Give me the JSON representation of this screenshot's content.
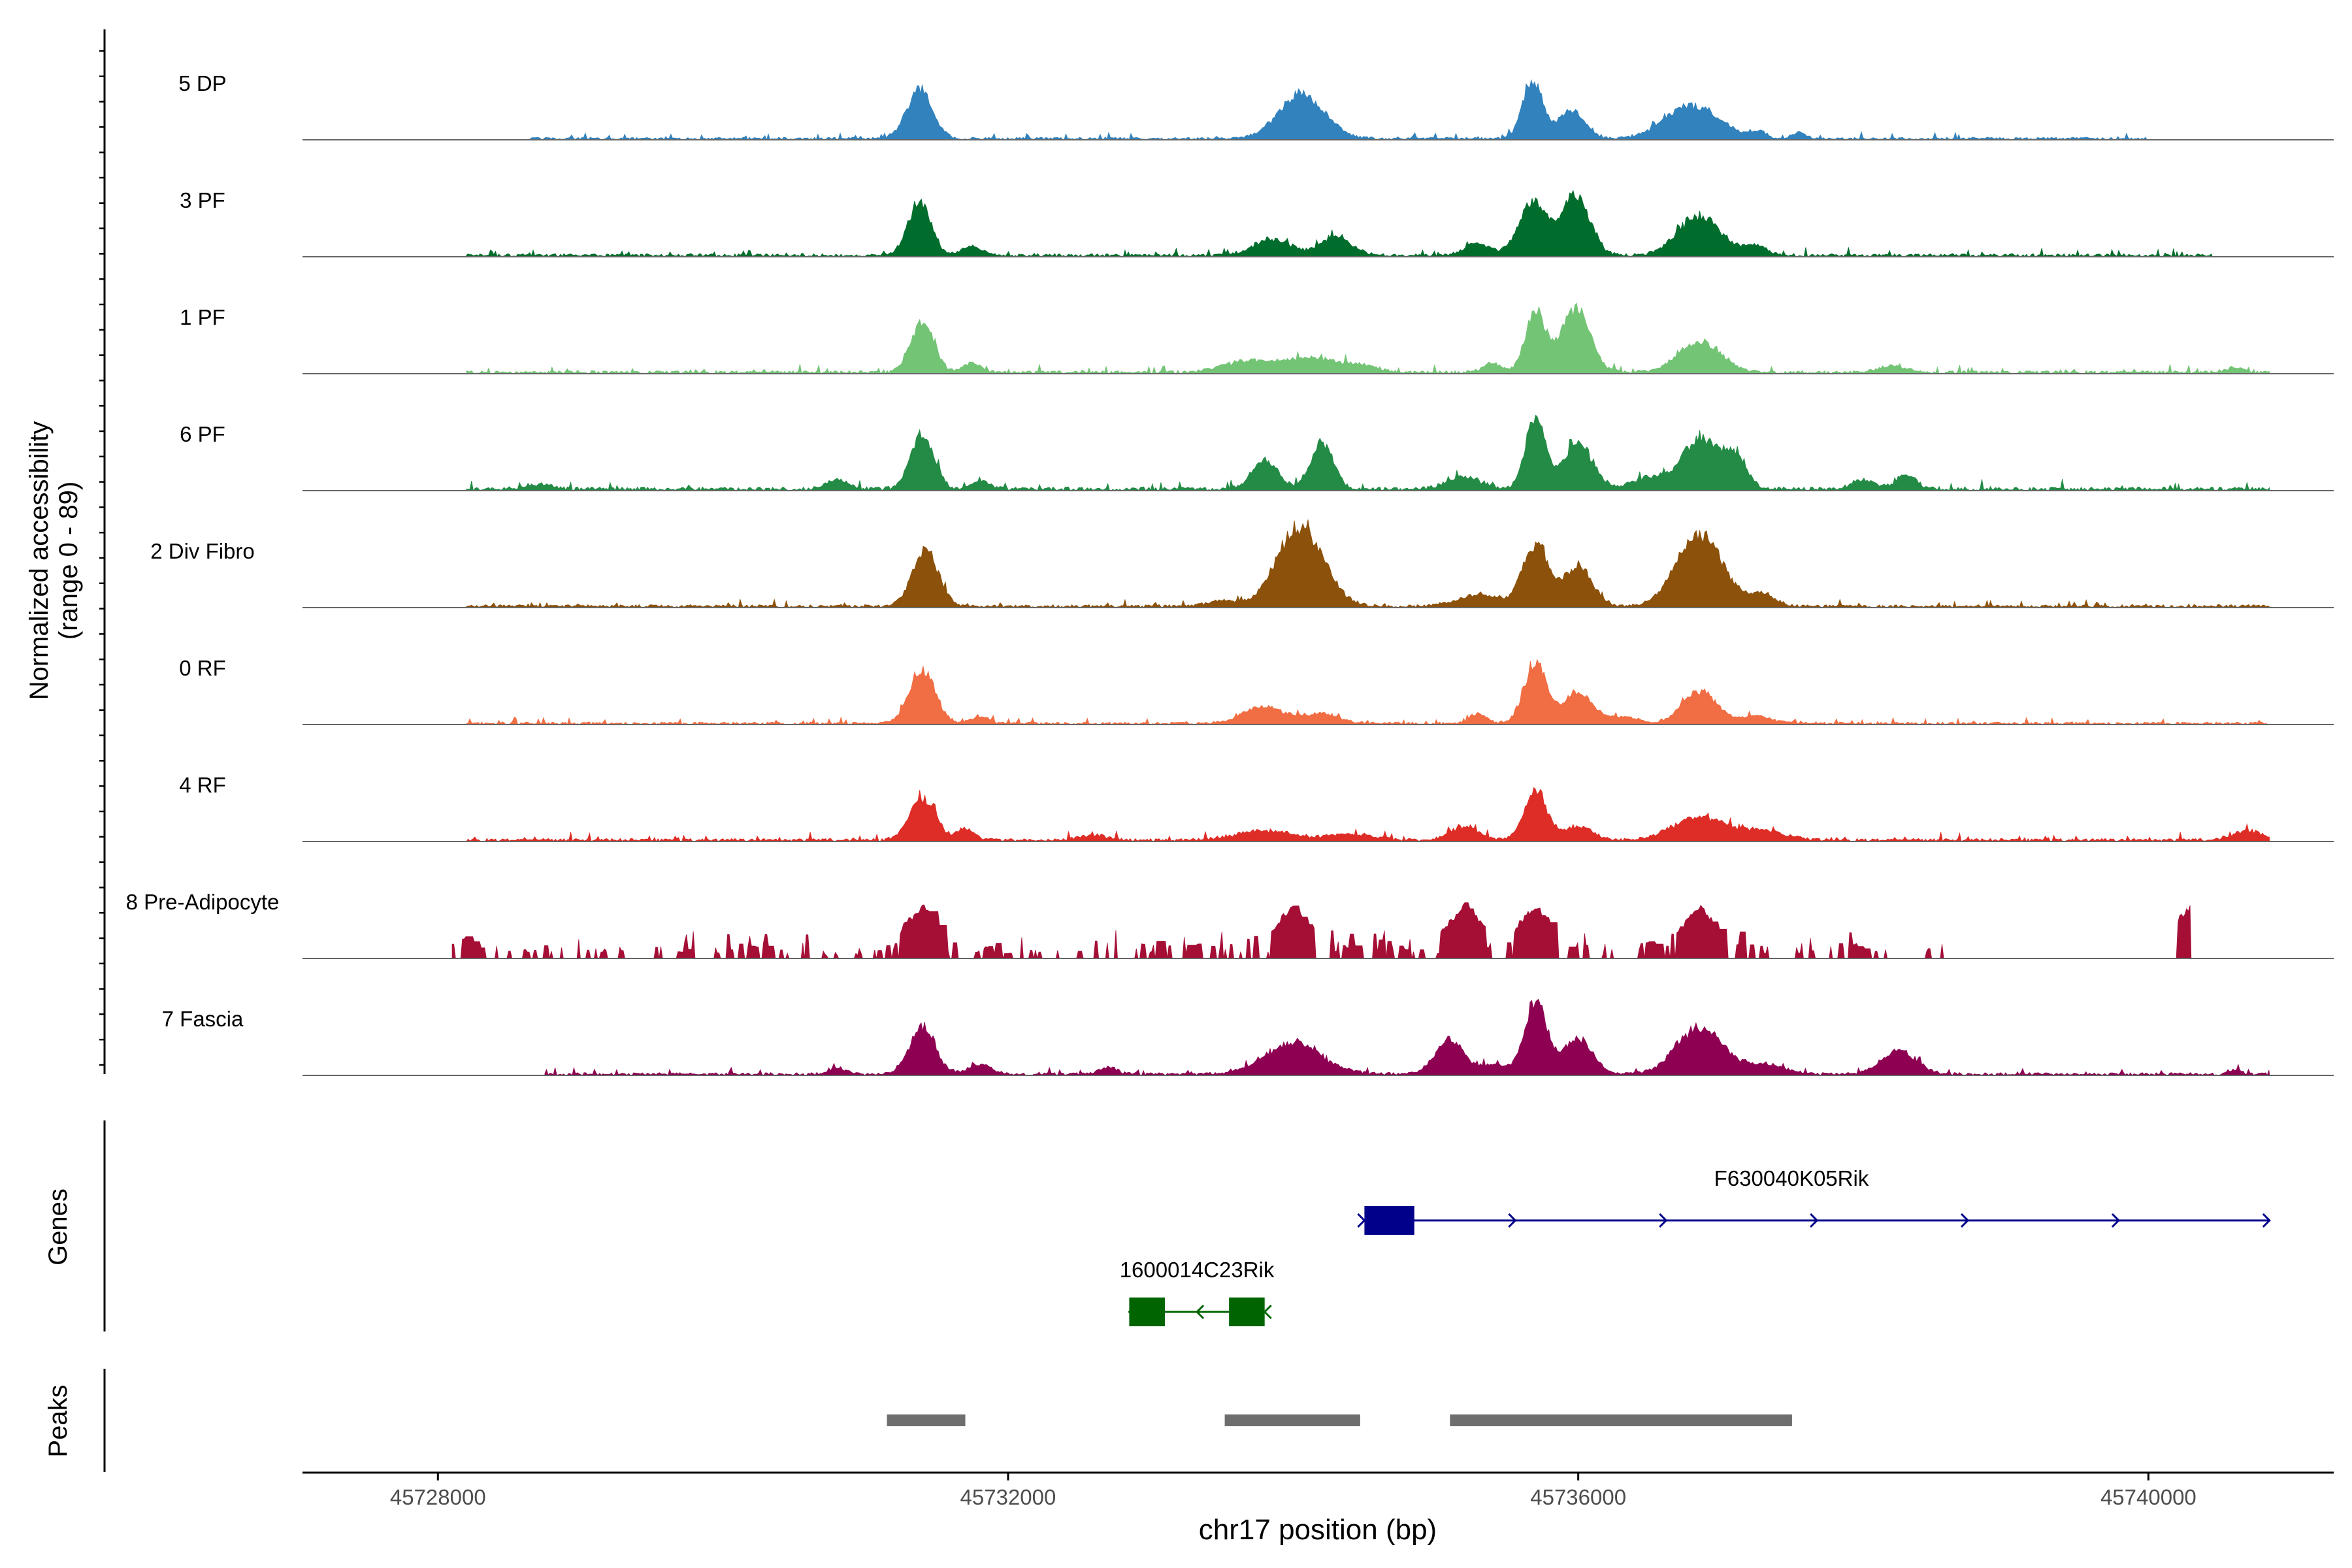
{
  "chart_data": {
    "type": "area",
    "title": "",
    "ylabel": "Normalized accessibility",
    "ylabel_range": "(range 0 - 89)",
    "ylim": [
      0,
      89
    ],
    "xlabel": "chr17 position (bp)",
    "xlim": [
      45727050,
      45741300
    ],
    "xticks": [
      45728000,
      45732000,
      45736000,
      45740000
    ],
    "xtick_labels": [
      "45728000",
      "45732000",
      "45736000",
      "45740000"
    ],
    "tracks": [
      {
        "name": "5 DP",
        "color": "#3182bd",
        "range": [
          45728650,
          45740000
        ],
        "noise": 2.2,
        "blocky": false,
        "peaks": [
          [
            45731380,
            42,
            90
          ],
          [
            45734060,
            38,
            160
          ],
          [
            45735680,
            50,
            70
          ],
          [
            45735950,
            25,
            90
          ],
          [
            45736800,
            28,
            190
          ],
          [
            45737270,
            6,
            50
          ],
          [
            45737550,
            5,
            50
          ]
        ]
      },
      {
        "name": "3 PF",
        "color": "#006d2c",
        "range": [
          45728200,
          45740450
        ],
        "noise": 2.6,
        "blocky": false,
        "peaks": [
          [
            45731380,
            46,
            80
          ],
          [
            45731750,
            8,
            70
          ],
          [
            45733850,
            14,
            130
          ],
          [
            45734300,
            16,
            110
          ],
          [
            45735300,
            10,
            90
          ],
          [
            45735680,
            45,
            95
          ],
          [
            45735980,
            52,
            100
          ],
          [
            45736850,
            34,
            150
          ],
          [
            45737250,
            8,
            80
          ]
        ]
      },
      {
        "name": "1 PF",
        "color": "#74c476",
        "range": [
          45728200,
          45740850
        ],
        "noise": 2.6,
        "blocky": false,
        "peaks": [
          [
            45731400,
            42,
            80
          ],
          [
            45731750,
            8,
            60
          ],
          [
            45733700,
            10,
            180
          ],
          [
            45734150,
            12,
            180
          ],
          [
            45734500,
            5,
            100
          ],
          [
            45735400,
            8,
            60
          ],
          [
            45735700,
            52,
            70
          ],
          [
            45735980,
            54,
            100
          ],
          [
            45736850,
            26,
            150
          ],
          [
            45738200,
            5,
            100
          ],
          [
            45740600,
            4,
            60
          ]
        ]
      },
      {
        "name": "6 PF",
        "color": "#238b45",
        "range": [
          45728200,
          45740850
        ],
        "noise": 3.2,
        "blocky": false,
        "peaks": [
          [
            45728700,
            4,
            100
          ],
          [
            45730800,
            8,
            80
          ],
          [
            45731400,
            48,
            80
          ],
          [
            45731800,
            8,
            60
          ],
          [
            45733800,
            24,
            90
          ],
          [
            45734200,
            40,
            80
          ],
          [
            45735200,
            10,
            120
          ],
          [
            45735700,
            60,
            70
          ],
          [
            45736000,
            40,
            100
          ],
          [
            45736500,
            10,
            120
          ],
          [
            45736850,
            44,
            120
          ],
          [
            45737100,
            28,
            80
          ],
          [
            45738000,
            8,
            80
          ],
          [
            45738300,
            12,
            70
          ]
        ]
      },
      {
        "name": "2 Div Fibro",
        "color": "#8c510a",
        "range": [
          45728200,
          45740850
        ],
        "noise": 2.5,
        "blocky": false,
        "peaks": [
          [
            45731420,
            48,
            90
          ],
          [
            45733500,
            5,
            100
          ],
          [
            45734050,
            70,
            160
          ],
          [
            45735300,
            10,
            150
          ],
          [
            45735700,
            52,
            90
          ],
          [
            45736000,
            34,
            100
          ],
          [
            45736850,
            62,
            160
          ],
          [
            45737300,
            10,
            90
          ]
        ]
      },
      {
        "name": "0 RF",
        "color": "#f16d43",
        "range": [
          45728200,
          45740850
        ],
        "noise": 2.2,
        "blocky": false,
        "peaks": [
          [
            45731400,
            46,
            90
          ],
          [
            45731800,
            6,
            60
          ],
          [
            45733800,
            14,
            150
          ],
          [
            45734200,
            8,
            120
          ],
          [
            45735300,
            8,
            60
          ],
          [
            45735700,
            52,
            80
          ],
          [
            45736000,
            26,
            100
          ],
          [
            45736300,
            6,
            100
          ],
          [
            45736850,
            28,
            120
          ],
          [
            45737250,
            6,
            100
          ]
        ]
      },
      {
        "name": "4 RF",
        "color": "#de2d26",
        "range": [
          45728200,
          45740850
        ],
        "noise": 2.6,
        "blocky": false,
        "peaks": [
          [
            45731400,
            36,
            90
          ],
          [
            45731700,
            10,
            60
          ],
          [
            45732600,
            4,
            100
          ],
          [
            45733800,
            8,
            200
          ],
          [
            45734400,
            5,
            150
          ],
          [
            45735200,
            12,
            100
          ],
          [
            45735700,
            42,
            80
          ],
          [
            45736000,
            12,
            100
          ],
          [
            45736850,
            20,
            180
          ],
          [
            45737300,
            8,
            150
          ],
          [
            45740700,
            8,
            100
          ]
        ]
      },
      {
        "name": "8 Pre-Adipocyte",
        "color": "#a50f36",
        "range": [
          45728100,
          45740300
        ],
        "noise": 0,
        "blocky": true,
        "peaks": []
      },
      {
        "name": "7 Fascia",
        "color": "#8e0152",
        "range": [
          45728750,
          45740850
        ],
        "noise": 2.4,
        "blocky": false,
        "peaks": [
          [
            45730800,
            5,
            60
          ],
          [
            45731400,
            40,
            90
          ],
          [
            45731800,
            8,
            80
          ],
          [
            45732700,
            6,
            60
          ],
          [
            45734000,
            26,
            200
          ],
          [
            45735100,
            30,
            100
          ],
          [
            45735400,
            8,
            80
          ],
          [
            45735700,
            62,
            80
          ],
          [
            45736000,
            30,
            100
          ],
          [
            45736850,
            40,
            160
          ],
          [
            45737300,
            8,
            150
          ],
          [
            45738250,
            20,
            120
          ],
          [
            45740600,
            3,
            50
          ]
        ]
      }
    ],
    "genes": [
      {
        "name": "F630040K05Rik",
        "strand": "+",
        "color": "#00008b",
        "start": 45734500,
        "end": 45740850,
        "exons": [
          [
            45734500,
            45734850
          ]
        ]
      },
      {
        "name": "1600014C23Rik",
        "strand": "-",
        "color": "#006400",
        "start": 45732850,
        "end": 45733800,
        "exons": [
          [
            45732850,
            45733100
          ],
          [
            45733550,
            45733800
          ]
        ]
      }
    ],
    "peaks": [
      [
        45731150,
        45731700
      ],
      [
        45733520,
        45734470
      ],
      [
        45735100,
        45737500
      ]
    ],
    "panel_labels": {
      "genes": "Genes",
      "peaks": "Peaks"
    }
  }
}
